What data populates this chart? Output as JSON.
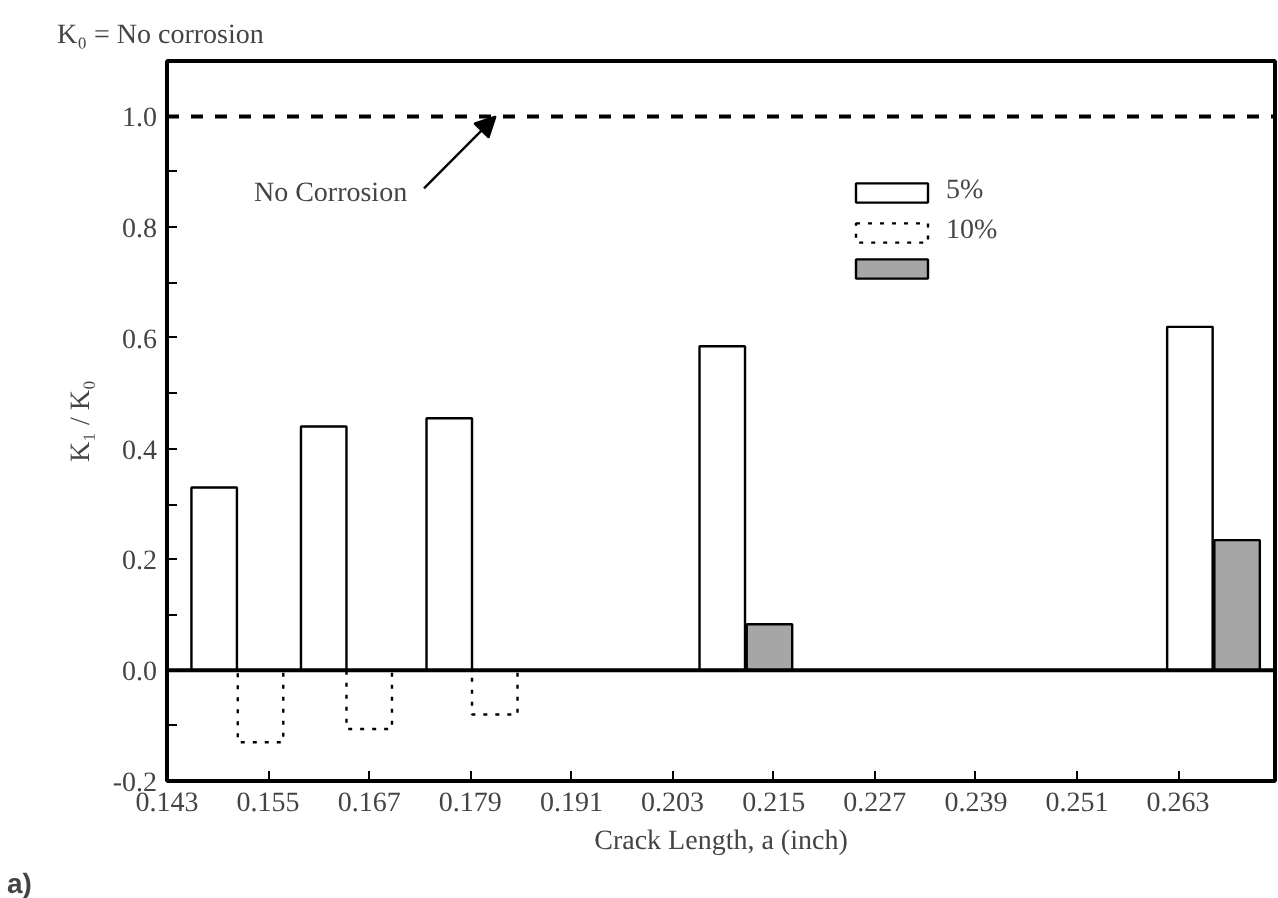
{
  "chart_data": {
    "type": "bar",
    "title": "K₀ = No corrosion",
    "xlabel": "Crack Length, a (inch)",
    "ylabel": "K₁ / K₀",
    "xlim": [
      0.143,
      0.2745
    ],
    "xticks": [
      0.143,
      0.155,
      0.167,
      0.179,
      0.191,
      0.203,
      0.215,
      0.227,
      0.239,
      0.251,
      0.263
    ],
    "ylim": [
      -0.2,
      1.1
    ],
    "yticks": [
      -0.2,
      {
        "value": -0.1,
        "label": null
      },
      {
        "value": 0,
        "label": "0.0"
      },
      {
        "value": 0.1,
        "label": null
      },
      0.2,
      {
        "value": 0.3,
        "label": null
      },
      0.4,
      {
        "value": 0.5,
        "label": null
      },
      0.6,
      {
        "value": 0.7,
        "label": null
      },
      0.8,
      {
        "value": 0.9,
        "label": null
      },
      {
        "value": 1,
        "label": "1.0"
      }
    ],
    "series": [
      {
        "name": "5%",
        "color": "#ffffff",
        "x": [
          0.1486,
          0.1616,
          0.1765,
          0.2089,
          0.2644
        ],
        "values": [
          0.33,
          0.44,
          0.455,
          0.585,
          0.62
        ],
        "line_style": "solid"
      },
      {
        "name": "10%",
        "color": "#ffffff",
        "x": [
          0.1541,
          0.167,
          0.1819
        ],
        "values": [
          -0.13,
          -0.106,
          -0.08
        ],
        "line_style": "dotted"
      },
      {
        "color": "#a6a6a6",
        "x": [
          0.2145,
          0.27
        ],
        "values": [
          0.083,
          0.235
        ],
        "line_style": "solid"
      }
    ],
    "ref_lines": [
      {
        "axis": "y",
        "value": 1.0,
        "line_style": "dashed"
      },
      {
        "axis": "y",
        "value": 0.0,
        "line_style": "solid"
      }
    ],
    "annotations": [
      {
        "text": "No Corrosion",
        "x": 0.182,
        "y": 1.0
      },
      "a)"
    ],
    "legend": "top right",
    "grid": false
  }
}
